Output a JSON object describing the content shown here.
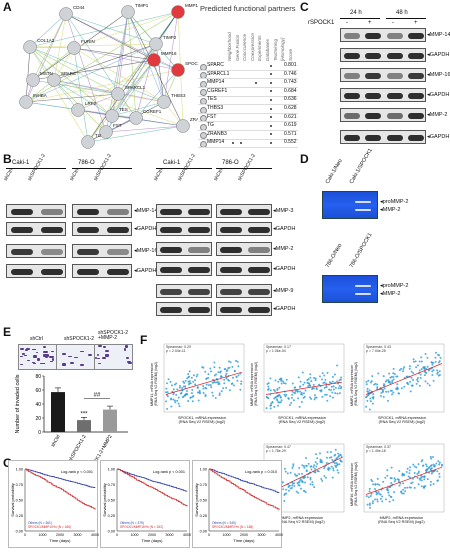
{
  "labels": {
    "A": "A",
    "B": "B",
    "C": "C",
    "D": "D",
    "E": "E",
    "F": "F",
    "G": "G"
  },
  "panelA": {
    "nodes": [
      "CD44",
      "TIMP1",
      "MMP14",
      "COL1A2",
      "SPOCK1",
      "TIMP2",
      "FURIN",
      "MMP16",
      "THBS3",
      "SPARCL1",
      "INHBA",
      "CGREF1",
      "ZRANB3",
      "LRP2",
      "SPARC",
      "TES",
      "FST",
      "TG",
      "MSTN"
    ],
    "table_title": "Predicted functional partners",
    "col_headers": [
      "Neighborhood",
      "Gene Fusion",
      "Cooccurence",
      "Coexpression",
      "Experiments",
      "Databases",
      "Textmining",
      "[Homology]",
      "Score"
    ],
    "rows": [
      {
        "name": "SPARC",
        "score": "0.801"
      },
      {
        "name": "SPARCL1",
        "score": "0.746"
      },
      {
        "name": "MMP14",
        "score": "0.743"
      },
      {
        "name": "CGREF1",
        "score": "0.684"
      },
      {
        "name": "TES",
        "score": "0.636"
      },
      {
        "name": "THBS3",
        "score": "0.628"
      },
      {
        "name": "FST",
        "score": "0.621"
      },
      {
        "name": "TG",
        "score": "0.619"
      },
      {
        "name": "ZRANB3",
        "score": "0.571"
      },
      {
        "name": "MMP14",
        "score": "0.552"
      }
    ],
    "colors": {
      "node_red": "#e0393e",
      "node_gray": "#cfd2d6",
      "edge1": "#8bc34a",
      "edge2": "#333333",
      "edge3": "#d0d05a",
      "edge4": "#6fa0d8"
    }
  },
  "panelB": {
    "left_cells": [
      "Caki-1",
      "786-O"
    ],
    "right_cells": [
      "Caki-1",
      "786-O"
    ],
    "lanes": [
      "shCtrl",
      "shSPOCK1-2"
    ],
    "left_markers": [
      "MMP-14",
      "GAPDH",
      "MMP-16",
      "GAPDH"
    ],
    "right_markers": [
      "MMP-3",
      "GAPDH",
      "MMP-2",
      "GAPDH",
      "MMP-9",
      "GAPDH"
    ]
  },
  "panelC": {
    "times": [
      "24 h",
      "48 h"
    ],
    "row_label": "rSPOCK1",
    "signs": [
      "-",
      "+",
      "-",
      "+"
    ],
    "markers": [
      "MMP-14",
      "GAPDH",
      "MMP-16",
      "GAPDH",
      "MMP-2",
      "GAPDH"
    ]
  },
  "panelD": {
    "top_lanes": [
      "Caki-1/Neo",
      "Caki-1/SPOCK1"
    ],
    "bottom_lanes": [
      "786-O/Neo",
      "786-O/SPOCK1"
    ],
    "bands": [
      "proMMP-2",
      "MMP-2"
    ]
  },
  "panelE": {
    "img_labels": [
      "shCtrl",
      "shSPOCK1-2",
      "shSPOCK1-2\n+MMP-2"
    ],
    "ylabel": "Number of invaded cells",
    "annotations": [
      "***",
      "##"
    ],
    "categories": [
      "shCtrl",
      "shSPOCK1-2",
      "shSPOCK1-2+MMP2"
    ]
  },
  "panelF": {
    "plots": [
      {
        "stat": "Spearman: 0.29\np = 2.04e-11",
        "xlabel": "SPOCK1, mRNA expression\n(RNA Seq V2 RSEM) (log2)",
        "ylabel": "MMP14, mRNA expression\n(RNA Seq V2 RSEM) (log2)"
      },
      {
        "stat": "Spearman: 0.17\np = 1.06e-04",
        "xlabel": "SPOCK1, mRNA expression\n(RNA Seq V2 RSEM) (log2)",
        "ylabel": "MMP16, mRNA expression\n(RNA Seq V2 RSEM) (log2)"
      },
      {
        "stat": "Spearman: 0.43\np = 7.04e-25",
        "xlabel": "SPOCK1, mRNA expression\n(RNA Seq V2 RSEM) (log2)",
        "ylabel": "MMP2, mRNA expression\n(RNA Seq V2 RSEM) (log2)"
      },
      {
        "stat": "Spearman: 0.47\np = 1.78e-29",
        "xlabel": "MMP2, mRNA expression\n(RNA Seq V2 RSEM) (log2)",
        "ylabel": "MMP14, mRNA expression\n(RNA Seq V2 RSEM) (log2)"
      },
      {
        "stat": "Spearman: 0.37\np = 1.49e-18",
        "xlabel": "MMP2, mRNA expression\n(RNA Seq V2 RSEM) (log2)",
        "ylabel": "MMP16, mRNA expression\n(RNA Seq V2 RSEM) (log2)"
      }
    ]
  },
  "panelG": {
    "plots": [
      {
        "logrank": "Log-rank p < 0.001",
        "leg1": "Others (N = 361)",
        "leg2": "SPOCK1/MMP14^hi (N = 166)"
      },
      {
        "logrank": "Log-rank p < 0.001",
        "leg1": "Others (N = 375)",
        "leg2": "SPOCK1/MMP16^hi (N = 152)"
      },
      {
        "logrank": "Log-rank p = 0.010",
        "leg1": "Others (N = 349)",
        "leg2": "SPOCK1/MMP2^hi (N = 168)"
      }
    ],
    "ylabel": "Survival probability",
    "xlabel": "Time (days)",
    "colors": {
      "others": "#2b3fa8",
      "high": "#d3262b"
    }
  },
  "chart_data": [
    {
      "type": "bar",
      "categories": [
        "shCtrl",
        "shSPOCK1-2",
        "shSPOCK1-2+MMP2"
      ],
      "values": [
        57,
        17,
        32
      ],
      "errors": [
        6,
        4,
        5
      ],
      "ylabel": "Number of invaded cells",
      "ylim": [
        0,
        80
      ],
      "yticks": [
        0,
        20,
        40,
        60,
        80
      ],
      "colors": [
        "#1a1a1a",
        "#6e6e6e",
        "#9a9a9a"
      ]
    }
  ]
}
